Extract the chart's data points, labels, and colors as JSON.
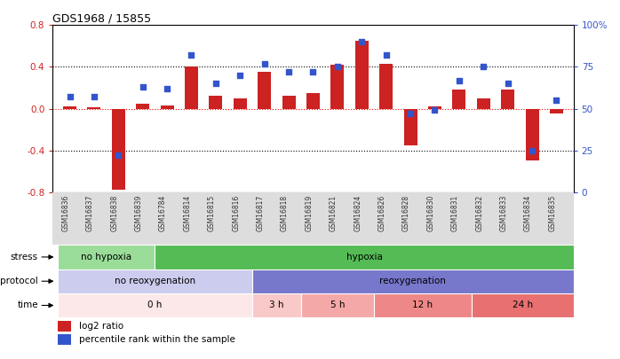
{
  "title": "GDS1968 / 15855",
  "samples": [
    "GSM16836",
    "GSM16837",
    "GSM16838",
    "GSM16839",
    "GSM16784",
    "GSM16814",
    "GSM16815",
    "GSM16816",
    "GSM16817",
    "GSM16818",
    "GSM16819",
    "GSM16821",
    "GSM16824",
    "GSM16826",
    "GSM16828",
    "GSM16830",
    "GSM16831",
    "GSM16832",
    "GSM16833",
    "GSM16834",
    "GSM16835"
  ],
  "log2_ratio": [
    0.02,
    0.01,
    -0.78,
    0.05,
    0.03,
    0.4,
    0.12,
    0.1,
    0.35,
    0.12,
    0.15,
    0.42,
    0.65,
    0.43,
    -0.35,
    0.02,
    0.18,
    0.1,
    0.18,
    -0.5,
    -0.05
  ],
  "percentile": [
    57,
    57,
    22,
    63,
    62,
    82,
    65,
    70,
    77,
    72,
    72,
    75,
    90,
    82,
    47,
    49,
    67,
    75,
    65,
    25,
    55
  ],
  "bar_color": "#cc2222",
  "dot_color": "#3355cc",
  "ylim": [
    -0.8,
    0.8
  ],
  "y2lim": [
    0,
    100
  ],
  "yticks": [
    -0.8,
    -0.4,
    0.0,
    0.4,
    0.8
  ],
  "y2ticks": [
    0,
    25,
    50,
    75,
    100
  ],
  "y2ticklabels": [
    "0",
    "25",
    "50",
    "75",
    "100%"
  ],
  "hline_dotted": [
    -0.4,
    0.0,
    0.4
  ],
  "hline_red": 0.0,
  "stress_regions": [
    {
      "label": "no hypoxia",
      "start": 0,
      "end": 4,
      "color": "#99dd99"
    },
    {
      "label": "hypoxia",
      "start": 4,
      "end": 21,
      "color": "#55bb55"
    }
  ],
  "protocol_regions": [
    {
      "label": "no reoxygenation",
      "start": 0,
      "end": 8,
      "color": "#ccccee"
    },
    {
      "label": "reoxygenation",
      "start": 8,
      "end": 21,
      "color": "#7777cc"
    }
  ],
  "time_regions": [
    {
      "label": "0 h",
      "start": 0,
      "end": 8,
      "color": "#fce8e8"
    },
    {
      "label": "3 h",
      "start": 8,
      "end": 10,
      "color": "#f9c8c8"
    },
    {
      "label": "5 h",
      "start": 10,
      "end": 13,
      "color": "#f5a8a8"
    },
    {
      "label": "12 h",
      "start": 13,
      "end": 17,
      "color": "#ee8888"
    },
    {
      "label": "24 h",
      "start": 17,
      "end": 21,
      "color": "#e87070"
    }
  ],
  "bg_color": "#ffffff",
  "tick_label_color_left": "#cc2222",
  "tick_label_color_right": "#3355cc",
  "xtick_bg": "#dddddd"
}
